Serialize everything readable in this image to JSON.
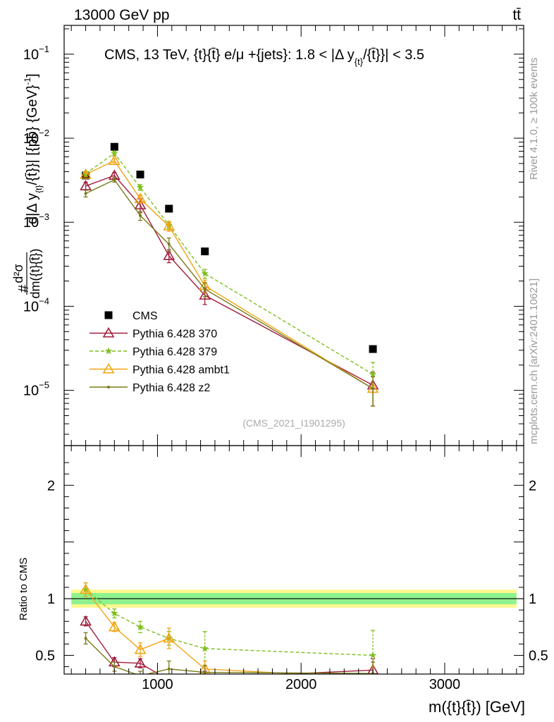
{
  "header": {
    "left": "13000 GeV pp",
    "right": "tt̄"
  },
  "side_labels": {
    "rivet": "Rivet 4.1.0, ≥ 100k events",
    "mcplots": "mcplots.cern.ch [arXiv:2401.10621]"
  },
  "chart_data": [
    {
      "type": "line",
      "title": "CMS, 13 TeV, {t}{t̄} e/μ +{jets}: 1.8 < |Δ y_{t}/{t̄}}| < 3.5",
      "title_main": "CMS, 13 TeV, {t}{t̄} e/μ +{jets}: 1.8 < |Δ y",
      "title_sub": "{t}",
      "title_tail": "/{t̄}}| < 3.5",
      "xlabel": "m({t}{t̄}) [GeV]",
      "ylabel": "#d²σ/dm({t}{t̄}) d|Δ y_{t}/{t̄}}| [{pb} {GeV}⁻¹]",
      "ylabel_parts": [
        "#",
        "d²σ",
        "dm({t}{t̄})",
        " d|Δ y",
        "{t}",
        "/{t̄}}| [{pb} {GeV}",
        "-1",
        "]"
      ],
      "yscale": "log",
      "xlim": [
        350,
        3550
      ],
      "ylim": [
        2.2e-06,
        0.22
      ],
      "x_ticks": [
        1000,
        2000,
        3000
      ],
      "x_tick_labels": [
        "1000",
        "2000",
        "3000"
      ],
      "y_ticks": [
        0.1,
        0.01,
        0.001,
        0.0001,
        1e-05
      ],
      "y_tick_labels": [
        {
          "base": "10",
          "exp": "−1"
        },
        {
          "base": "10",
          "exp": "−2"
        },
        {
          "base": "10",
          "exp": "−3"
        },
        {
          "base": "10",
          "exp": "−4"
        },
        {
          "base": "10",
          "exp": "−5"
        }
      ],
      "watermark": "(CMS_2021_I1901295)",
      "legend_position": "lower-left",
      "x": [
        500,
        700,
        880,
        1080,
        1330,
        2500
      ],
      "series": [
        {
          "name": "CMS",
          "color": "#000000",
          "marker": "square",
          "dash": "none",
          "values": [
            0.0036,
            0.0079,
            0.0037,
            0.00145,
            0.00045,
            3.1e-05
          ],
          "errors": [
            0,
            0,
            0,
            0,
            0,
            0
          ]
        },
        {
          "name": "Pythia 6.428 370",
          "color": "#a01d3c",
          "marker": "triangle-open",
          "dash": "none",
          "values": [
            0.0027,
            0.0036,
            0.0016,
            0.0004,
            0.000135,
            1.15e-05
          ],
          "errors": [
            0.0003,
            0.0003,
            0.0003,
            7e-05,
            3e-05,
            5e-06
          ]
        },
        {
          "name": "Pythia 6.428 379",
          "color": "#7fbf1f",
          "marker": "star",
          "dash": "dashed",
          "values": [
            0.0038,
            0.0066,
            0.0026,
            0.00092,
            0.000245,
            1.55e-05
          ],
          "errors": [
            0.0002,
            0.0004,
            0.0002,
            8e-05,
            3e-05,
            6e-06
          ]
        },
        {
          "name": "Pythia 6.428 ambt1",
          "color": "#f0a513",
          "marker": "triangle-open",
          "dash": "none",
          "values": [
            0.0037,
            0.0054,
            0.0019,
            0.0009,
            0.000175,
            1.05e-05
          ],
          "errors": [
            0.0002,
            0.0003,
            0.0002,
            0.00012,
            3e-05,
            4e-06
          ]
        },
        {
          "name": "Pythia 6.428 z2",
          "color": "#7a7a1a",
          "marker": "dot",
          "dash": "none",
          "values": [
            0.0022,
            0.0032,
            0.0012,
            0.00055,
            0.00016,
            1.05e-05
          ],
          "errors": [
            0.0002,
            0.0002,
            0.00015,
            0.0001,
            3e-05,
            4e-06
          ]
        }
      ]
    },
    {
      "type": "line",
      "title": "",
      "ylabel": "Ratio to CMS",
      "xlabel": "m({t}{t̄}) [GeV]",
      "xlim": [
        350,
        3550
      ],
      "ylim": [
        0.335,
        2.35
      ],
      "y_ticks": [
        0.5,
        1,
        2
      ],
      "y_tick_labels": [
        "0.5",
        "1",
        "2"
      ],
      "band_inner": 0.05,
      "band_outer": 0.08,
      "x": [
        500,
        700,
        880,
        1080,
        1330,
        2500
      ],
      "series": [
        {
          "name": "Pythia 6.428 370",
          "color": "#a01d3c",
          "marker": "triangle-open",
          "dash": "none",
          "values": [
            0.8,
            0.44,
            0.43,
            0.28,
            0.3,
            0.37
          ],
          "errors": [
            0.04,
            0.04,
            0.04,
            0.05,
            0.06,
            0.1
          ]
        },
        {
          "name": "Pythia 6.428 379",
          "color": "#7fbf1f",
          "marker": "star",
          "dash": "dashed",
          "values": [
            1.08,
            0.87,
            0.75,
            0.65,
            0.56,
            0.5
          ],
          "errors": [
            0.06,
            0.04,
            0.05,
            0.06,
            0.15,
            0.22
          ]
        },
        {
          "name": "Pythia 6.428 ambt1",
          "color": "#f0a513",
          "marker": "triangle-open",
          "dash": "none",
          "values": [
            1.08,
            0.75,
            0.55,
            0.65,
            0.38,
            0.3
          ],
          "errors": [
            0.06,
            0.04,
            0.06,
            0.09,
            0.07,
            0.1
          ]
        },
        {
          "name": "Pythia 6.428 z2",
          "color": "#7a7a1a",
          "marker": "dot",
          "dash": "none",
          "values": [
            0.65,
            0.4,
            0.32,
            0.38,
            0.35,
            0.34
          ],
          "errors": [
            0.05,
            0.04,
            0.04,
            0.07,
            0.06,
            0.1
          ]
        }
      ]
    }
  ]
}
